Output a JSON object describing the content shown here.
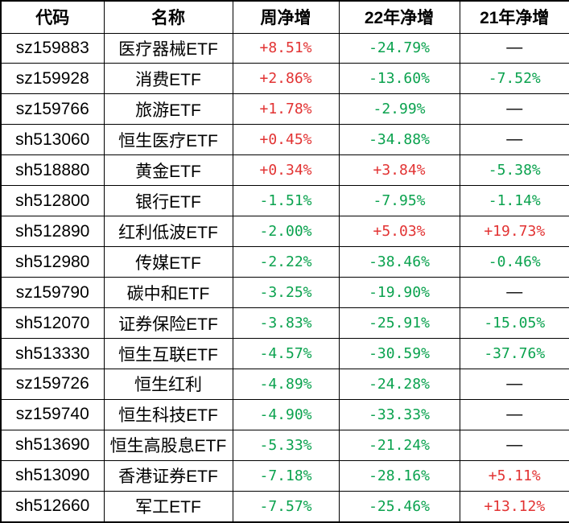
{
  "table": {
    "columns": [
      {
        "key": "code",
        "label": "代码"
      },
      {
        "key": "name",
        "label": "名称"
      },
      {
        "key": "week",
        "label": "周净增"
      },
      {
        "key": "y22",
        "label": "22年净增"
      },
      {
        "key": "y21",
        "label": "21年净增"
      }
    ],
    "colors": {
      "positive": "#e23333",
      "negative": "#0aa24e",
      "neutral": "#000000",
      "grid": "#000000",
      "background": "#ffffff"
    },
    "missing_value_dash": "—",
    "rows": [
      {
        "code": "sz159883",
        "name": "医疗器械ETF",
        "week": "+8.51%",
        "y22": "-24.79%",
        "y21": "—"
      },
      {
        "code": "sz159928",
        "name": "消费ETF",
        "week": "+2.86%",
        "y22": "-13.60%",
        "y21": "-7.52%"
      },
      {
        "code": "sz159766",
        "name": "旅游ETF",
        "week": "+1.78%",
        "y22": "-2.99%",
        "y21": "—"
      },
      {
        "code": "sh513060",
        "name": "恒生医疗ETF",
        "week": "+0.45%",
        "y22": "-34.88%",
        "y21": "—"
      },
      {
        "code": "sh518880",
        "name": "黄金ETF",
        "week": "+0.34%",
        "y22": "+3.84%",
        "y21": "-5.38%"
      },
      {
        "code": "sh512800",
        "name": "银行ETF",
        "week": "-1.51%",
        "y22": "-7.95%",
        "y21": "-1.14%"
      },
      {
        "code": "sh512890",
        "name": "红利低波ETF",
        "week": "-2.00%",
        "y22": "+5.03%",
        "y21": "+19.73%"
      },
      {
        "code": "sh512980",
        "name": "传媒ETF",
        "week": "-2.22%",
        "y22": "-38.46%",
        "y21": "-0.46%"
      },
      {
        "code": "sz159790",
        "name": "碳中和ETF",
        "week": "-3.25%",
        "y22": "-19.90%",
        "y21": "—"
      },
      {
        "code": "sh512070",
        "name": "证券保险ETF",
        "week": "-3.83%",
        "y22": "-25.91%",
        "y21": "-15.05%"
      },
      {
        "code": "sh513330",
        "name": "恒生互联ETF",
        "week": "-4.57%",
        "y22": "-30.59%",
        "y21": "-37.76%"
      },
      {
        "code": "sz159726",
        "name": "恒生红利",
        "week": "-4.89%",
        "y22": "-24.28%",
        "y21": "—"
      },
      {
        "code": "sz159740",
        "name": "恒生科技ETF",
        "week": "-4.90%",
        "y22": "-33.33%",
        "y21": "—"
      },
      {
        "code": "sh513690",
        "name": "恒生高股息ETF",
        "week": "-5.33%",
        "y22": "-21.24%",
        "y21": "—"
      },
      {
        "code": "sh513090",
        "name": "香港证券ETF",
        "week": "-7.18%",
        "y22": "-28.16%",
        "y21": "+5.11%"
      },
      {
        "code": "sh512660",
        "name": "军工ETF",
        "week": "-7.57%",
        "y22": "-25.46%",
        "y21": "+13.12%"
      }
    ]
  }
}
